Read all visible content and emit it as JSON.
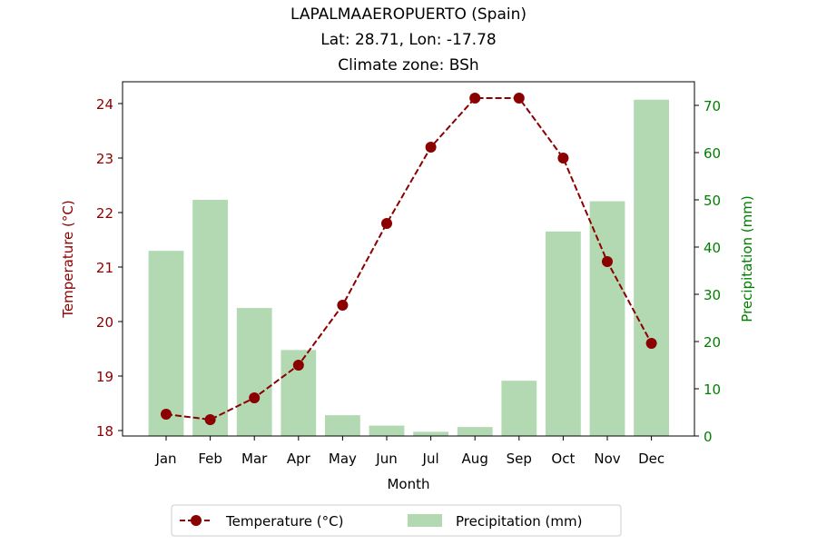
{
  "chart_data": {
    "type": "bar",
    "title_lines": [
      "LAPALMAAEROPUERTO (Spain)",
      "Lat: 28.71, Lon: -17.78",
      "Climate zone: BSh"
    ],
    "xlabel": "Month",
    "ylabel_left": "Temperature (°C)",
    "ylabel_right": "Precipitation (mm)",
    "categories": [
      "Jan",
      "Feb",
      "Mar",
      "Apr",
      "May",
      "Jun",
      "Jul",
      "Aug",
      "Sep",
      "Oct",
      "Nov",
      "Dec"
    ],
    "series": [
      {
        "name": "Temperature (°C)",
        "type": "line",
        "axis": "left",
        "color": "#8b0000",
        "values": [
          18.3,
          18.2,
          18.6,
          19.2,
          20.3,
          21.8,
          23.2,
          24.1,
          24.1,
          23.0,
          21.1,
          19.6
        ]
      },
      {
        "name": "Precipitation (mm)",
        "type": "bar",
        "axis": "right",
        "color": "#b2d9b2",
        "values": [
          39.2,
          50.0,
          27.1,
          18.2,
          4.4,
          2.2,
          0.9,
          1.9,
          11.7,
          43.3,
          49.7,
          71.2
        ]
      }
    ],
    "ylim_left": [
      17.9,
      24.4
    ],
    "ylim_right": [
      0,
      75
    ],
    "yticks_left": [
      "18",
      "19",
      "20",
      "21",
      "22",
      "23",
      "24"
    ],
    "yticks_right": [
      "0",
      "10",
      "20",
      "30",
      "40",
      "50",
      "60",
      "70"
    ],
    "left_axis_color": "#8b0000",
    "right_axis_color": "#008000",
    "legend_position": "bottom-center",
    "grid": false
  }
}
